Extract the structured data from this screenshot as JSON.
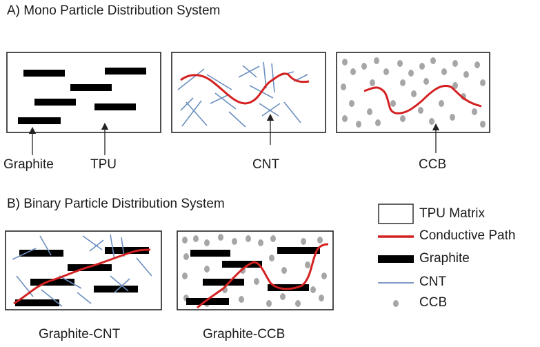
{
  "section_a": {
    "title": "A) Mono Particle Distribution System",
    "labels": {
      "graphite": "Graphite",
      "tpu": "TPU",
      "cnt": "CNT",
      "ccb": "CCB"
    }
  },
  "section_b": {
    "title": "B) Binary Particle Distribution System",
    "labels": {
      "graphite_cnt": "Graphite-CNT",
      "graphite_ccb": "Graphite-CCB"
    }
  },
  "legend": {
    "items": [
      {
        "label": "TPU Matrix",
        "icon": "tpu-matrix-swatch"
      },
      {
        "label": "Conductive Path",
        "icon": "conductive-path-swatch"
      },
      {
        "label": "Graphite",
        "icon": "graphite-swatch"
      },
      {
        "label": "CNT",
        "icon": "cnt-swatch"
      },
      {
        "label": "CCB",
        "icon": "ccb-swatch"
      }
    ]
  },
  "colors": {
    "graphite": "#000000",
    "conductive_path": "#d42020",
    "cnt": "#6b8fc0",
    "ccb": "#a6a6a6",
    "box_border": "#222222"
  }
}
